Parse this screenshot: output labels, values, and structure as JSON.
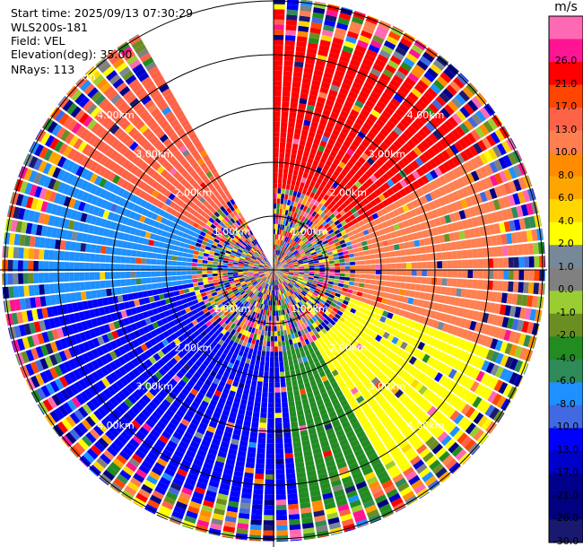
{
  "header": {
    "start_time": "Start time: 2025/09/13 07:30:29",
    "device": "WLS200s-181",
    "field": "Field: VEL",
    "elevation": "Elevation(deg): 35.00",
    "nrays": "NRays: 113"
  },
  "chart_data": {
    "type": "ppi-polar-scan",
    "field": "VEL",
    "units": "m/s",
    "elevation_deg": 35.0,
    "n_rays": 113,
    "range_rings_km": [
      1.0,
      2.0,
      3.0,
      4.0,
      5.0
    ],
    "range_labels": [
      "1.00km",
      "2.00km",
      "3.00km",
      "4.00km",
      "5.00km"
    ],
    "max_range_km": 5.05,
    "empty_sector_deg": [
      -30,
      0
    ],
    "colorbar": {
      "unit": "m/s",
      "colors": [
        "#191970",
        "#000080",
        "#00008b",
        "#0000cd",
        "#0000ff",
        "#4169e1",
        "#1e90ff",
        "#2e8b57",
        "#228b22",
        "#6b8e23",
        "#9acd32",
        "#808080",
        "#778899",
        "#ffff00",
        "#ffd700",
        "#ffa500",
        "#ff8c00",
        "#ff7f50",
        "#ff6347",
        "#ff4500",
        "#ff0000",
        "#ff1493",
        "#ff69b4"
      ],
      "tick_labels": [
        "-30.0",
        "-26.0",
        "-21.0",
        "-17.0",
        "-13.0",
        "-10.0",
        "-8.0",
        "-6.0",
        "-4.0",
        "-2.0",
        "-1.0",
        "0.0",
        "1.0",
        "2.0",
        "4.0",
        "6.0",
        "8.0",
        "10.0",
        "13.0",
        "17.0",
        "21.0",
        "26.0"
      ]
    },
    "regions": [
      {
        "from_deg": -60,
        "to_deg": -30,
        "dominant": "ff6347",
        "note": "NW orange/red band"
      },
      {
        "from_deg": 0,
        "to_deg": 60,
        "dominant": "ff0000",
        "note": "NE red"
      },
      {
        "from_deg": 60,
        "to_deg": 110,
        "dominant": "ff7f50",
        "note": "E orange/coral"
      },
      {
        "from_deg": 110,
        "to_deg": 150,
        "dominant": "ffff00",
        "note": "ESE yellow"
      },
      {
        "from_deg": 150,
        "to_deg": 175,
        "dominant": "228b22",
        "note": "SE green"
      },
      {
        "from_deg": 175,
        "to_deg": 260,
        "dominant": "0000ff",
        "note": "S/SW blue"
      },
      {
        "from_deg": 260,
        "to_deg": 300,
        "dominant": "1e90ff",
        "note": "W light blue"
      },
      {
        "from_deg": 300,
        "to_deg": 330,
        "dominant": "9acd32",
        "note": "WNW green"
      }
    ]
  }
}
